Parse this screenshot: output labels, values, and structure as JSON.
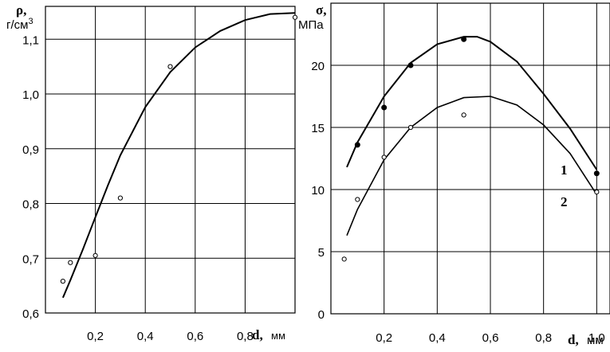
{
  "chart_data": [
    {
      "type": "scatter",
      "title": "",
      "ylabel_symbol": "ρ,",
      "ylabel_unit": "г/см",
      "ylabel_unit_sup": "3",
      "xlabel_symbol": "d,",
      "xlabel_unit": "мм",
      "xlim": [
        0.0,
        1.0
      ],
      "ylim": [
        0.6,
        1.16
      ],
      "x_ticks": [
        {
          "v": 0.2,
          "label": "0,2"
        },
        {
          "v": 0.4,
          "label": "0,4"
        },
        {
          "v": 0.6,
          "label": "0,6"
        },
        {
          "v": 0.8,
          "label": "0,8"
        }
      ],
      "y_ticks": [
        {
          "v": 0.6,
          "label": "0,6"
        },
        {
          "v": 0.7,
          "label": "0,7"
        },
        {
          "v": 0.8,
          "label": "0,8"
        },
        {
          "v": 0.9,
          "label": "0,9"
        },
        {
          "v": 1.0,
          "label": "1,0"
        },
        {
          "v": 1.1,
          "label": "1,1"
        }
      ],
      "grid": true,
      "series": [
        {
          "marker": "open-circle",
          "points": [
            [
              0.07,
              0.658
            ],
            [
              0.1,
              0.692
            ],
            [
              0.2,
              0.705
            ],
            [
              0.3,
              0.81
            ],
            [
              0.5,
              1.05
            ],
            [
              1.0,
              1.14
            ]
          ]
        }
      ],
      "fit_curve": [
        [
          0.07,
          0.628
        ],
        [
          0.1,
          0.66
        ],
        [
          0.15,
          0.716
        ],
        [
          0.2,
          0.775
        ],
        [
          0.25,
          0.833
        ],
        [
          0.3,
          0.888
        ],
        [
          0.4,
          0.976
        ],
        [
          0.5,
          1.04
        ],
        [
          0.6,
          1.085
        ],
        [
          0.7,
          1.115
        ],
        [
          0.8,
          1.135
        ],
        [
          0.9,
          1.146
        ],
        [
          1.0,
          1.148
        ]
      ]
    },
    {
      "type": "scatter",
      "title": "",
      "ylabel_symbol": "σ,",
      "ylabel_unit": "МПа",
      "xlabel_symbol": "d,",
      "xlabel_unit": "мм",
      "xlim": [
        0.0,
        1.05
      ],
      "ylim": [
        0,
        25
      ],
      "x_ticks": [
        {
          "v": 0.2,
          "label": "0,2"
        },
        {
          "v": 0.4,
          "label": "0,4"
        },
        {
          "v": 0.6,
          "label": "0,6"
        },
        {
          "v": 0.8,
          "label": "0,8"
        },
        {
          "v": 1.0,
          "label": "1,0"
        }
      ],
      "y_ticks": [
        {
          "v": 0,
          "label": "0"
        },
        {
          "v": 5,
          "label": "5"
        },
        {
          "v": 10,
          "label": "10"
        },
        {
          "v": 15,
          "label": "15"
        },
        {
          "v": 20,
          "label": "20"
        }
      ],
      "grid": true,
      "series": [
        {
          "name": "1",
          "marker": "filled-circle",
          "points": [
            [
              0.1,
              13.6
            ],
            [
              0.2,
              16.6
            ],
            [
              0.3,
              20.0
            ],
            [
              0.5,
              22.1
            ],
            [
              1.0,
              11.3
            ]
          ],
          "fit_curve": [
            [
              0.06,
              11.8
            ],
            [
              0.1,
              13.8
            ],
            [
              0.2,
              17.5
            ],
            [
              0.3,
              20.2
            ],
            [
              0.4,
              21.7
            ],
            [
              0.5,
              22.3
            ],
            [
              0.55,
              22.3
            ],
            [
              0.6,
              21.9
            ],
            [
              0.7,
              20.3
            ],
            [
              0.8,
              17.7
            ],
            [
              0.9,
              14.9
            ],
            [
              1.0,
              11.6
            ]
          ]
        },
        {
          "name": "2",
          "marker": "open-circle",
          "points": [
            [
              0.05,
              4.4
            ],
            [
              0.1,
              9.2
            ],
            [
              0.2,
              12.6
            ],
            [
              0.3,
              15.0
            ],
            [
              0.5,
              16.0
            ],
            [
              1.0,
              9.8
            ]
          ],
          "fit_curve": [
            [
              0.06,
              6.3
            ],
            [
              0.1,
              8.4
            ],
            [
              0.2,
              12.4
            ],
            [
              0.3,
              15.0
            ],
            [
              0.4,
              16.6
            ],
            [
              0.5,
              17.4
            ],
            [
              0.6,
              17.5
            ],
            [
              0.7,
              16.8
            ],
            [
              0.8,
              15.2
            ],
            [
              0.9,
              12.9
            ],
            [
              1.0,
              9.6
            ]
          ]
        }
      ]
    }
  ]
}
